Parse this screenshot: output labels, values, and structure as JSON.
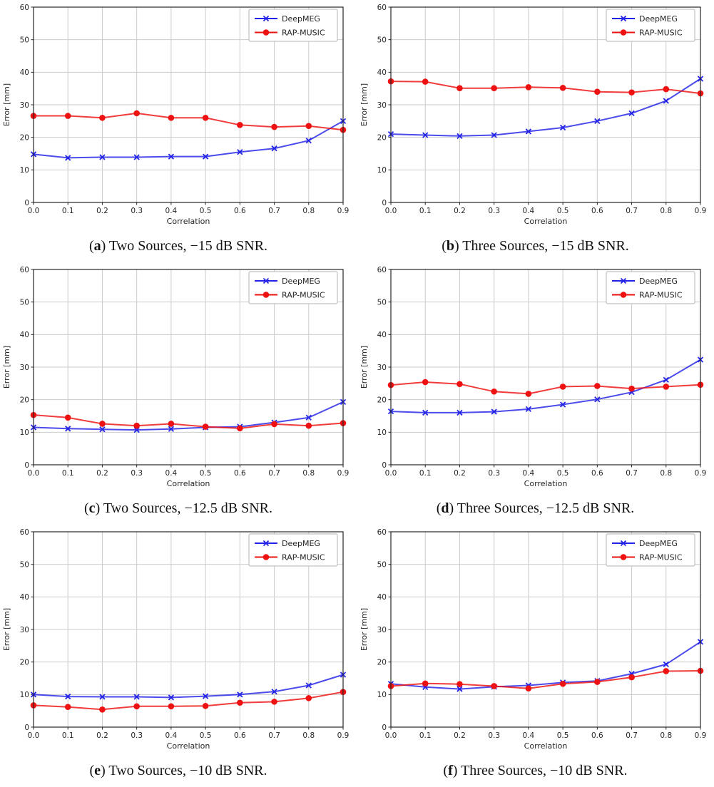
{
  "figure": {
    "xlabel": "Correlation",
    "ylabel": "Error [mm]",
    "legend_labels": [
      "DeepMEG",
      "RAP-MUSIC"
    ],
    "colors": {
      "deepmeg": "#2323e8",
      "rapmusic": "#ee1111",
      "grid": "#cccccc",
      "axis": "#262626",
      "legend_border": "#b3b3b3",
      "legend_bg": "#ffffff"
    }
  },
  "chart_data": [
    {
      "type": "line",
      "caption": {
        "open": "(",
        "letter": "a",
        "close": ")",
        "text": " Two Sources, −15 dB SNR."
      },
      "xlabel": "Correlation",
      "ylabel": "Error [mm]",
      "xlim": [
        0.0,
        0.9
      ],
      "ylim": [
        0,
        60
      ],
      "grid": true,
      "legend_position": "upper right",
      "x": [
        0.0,
        0.1,
        0.2,
        0.3,
        0.4,
        0.5,
        0.6,
        0.7,
        0.8,
        0.9
      ],
      "xticks": [
        "0.0",
        "0.1",
        "0.2",
        "0.3",
        "0.4",
        "0.5",
        "0.6",
        "0.7",
        "0.8",
        "0.9"
      ],
      "yticks": [
        0,
        10,
        20,
        30,
        40,
        50,
        60
      ],
      "series": [
        {
          "name": "DeepMEG",
          "color": "#2323e8",
          "marker": "x",
          "values": [
            14.8,
            13.7,
            13.9,
            13.9,
            14.1,
            14.1,
            15.5,
            16.6,
            19.0,
            25.0
          ]
        },
        {
          "name": "RAP-MUSIC",
          "color": "#ee1111",
          "marker": "circle",
          "values": [
            26.6,
            26.6,
            26.0,
            27.4,
            26.0,
            26.0,
            23.8,
            23.2,
            23.5,
            22.3
          ]
        }
      ]
    },
    {
      "type": "line",
      "caption": {
        "open": "(",
        "letter": "b",
        "close": ")",
        "text": " Three Sources, −15 dB SNR."
      },
      "xlabel": "Correlation",
      "ylabel": "Error [mm]",
      "xlim": [
        0.0,
        0.9
      ],
      "ylim": [
        0,
        60
      ],
      "grid": true,
      "legend_position": "upper right",
      "x": [
        0.0,
        0.1,
        0.2,
        0.3,
        0.4,
        0.5,
        0.6,
        0.7,
        0.8,
        0.9
      ],
      "xticks": [
        "0.0",
        "0.1",
        "0.2",
        "0.3",
        "0.4",
        "0.5",
        "0.6",
        "0.7",
        "0.8",
        "0.9"
      ],
      "yticks": [
        0,
        10,
        20,
        30,
        40,
        50,
        60
      ],
      "series": [
        {
          "name": "DeepMEG",
          "color": "#2323e8",
          "marker": "x",
          "values": [
            21.0,
            20.7,
            20.4,
            20.7,
            21.8,
            23.0,
            25.0,
            27.4,
            31.2,
            38.0
          ]
        },
        {
          "name": "RAP-MUSIC",
          "color": "#ee1111",
          "marker": "circle",
          "values": [
            37.2,
            37.1,
            35.1,
            35.1,
            35.4,
            35.2,
            34.0,
            33.8,
            34.8,
            33.5
          ]
        }
      ]
    },
    {
      "type": "line",
      "caption": {
        "open": "(",
        "letter": "c",
        "close": ")",
        "text": " Two Sources, −12.5 dB SNR."
      },
      "xlabel": "Correlation",
      "ylabel": "Error [mm]",
      "xlim": [
        0.0,
        0.9
      ],
      "ylim": [
        0,
        60
      ],
      "grid": true,
      "legend_position": "upper right",
      "x": [
        0.0,
        0.1,
        0.2,
        0.3,
        0.4,
        0.5,
        0.6,
        0.7,
        0.8,
        0.9
      ],
      "xticks": [
        "0.0",
        "0.1",
        "0.2",
        "0.3",
        "0.4",
        "0.5",
        "0.6",
        "0.7",
        "0.8",
        "0.9"
      ],
      "yticks": [
        0,
        10,
        20,
        30,
        40,
        50,
        60
      ],
      "series": [
        {
          "name": "DeepMEG",
          "color": "#2323e8",
          "marker": "x",
          "values": [
            11.5,
            11.1,
            10.9,
            10.7,
            11.0,
            11.5,
            11.7,
            13.0,
            14.5,
            19.3
          ]
        },
        {
          "name": "RAP-MUSIC",
          "color": "#ee1111",
          "marker": "circle",
          "values": [
            15.3,
            14.5,
            12.6,
            12.0,
            12.6,
            11.7,
            11.2,
            12.5,
            12.0,
            12.8
          ]
        }
      ]
    },
    {
      "type": "line",
      "caption": {
        "open": "(",
        "letter": "d",
        "close": ")",
        "text": " Three Sources, −12.5 dB SNR."
      },
      "xlabel": "Correlation",
      "ylabel": "Error [mm]",
      "xlim": [
        0.0,
        0.9
      ],
      "ylim": [
        0,
        60
      ],
      "grid": true,
      "legend_position": "upper right",
      "x": [
        0.0,
        0.1,
        0.2,
        0.3,
        0.4,
        0.5,
        0.6,
        0.7,
        0.8,
        0.9
      ],
      "xticks": [
        "0.0",
        "0.1",
        "0.2",
        "0.3",
        "0.4",
        "0.5",
        "0.6",
        "0.7",
        "0.8",
        "0.9"
      ],
      "yticks": [
        0,
        10,
        20,
        30,
        40,
        50,
        60
      ],
      "series": [
        {
          "name": "DeepMEG",
          "color": "#2323e8",
          "marker": "x",
          "values": [
            16.4,
            16.0,
            16.0,
            16.3,
            17.1,
            18.5,
            20.1,
            22.3,
            26.1,
            32.3
          ]
        },
        {
          "name": "RAP-MUSIC",
          "color": "#ee1111",
          "marker": "circle",
          "values": [
            24.5,
            25.4,
            24.8,
            22.5,
            21.8,
            24.0,
            24.2,
            23.4,
            24.0,
            24.6
          ]
        }
      ]
    },
    {
      "type": "line",
      "caption": {
        "open": "(",
        "letter": "e",
        "close": ")",
        "text": " Two Sources, −10 dB SNR."
      },
      "xlabel": "Correlation",
      "ylabel": "Error [mm]",
      "xlim": [
        0.0,
        0.9
      ],
      "ylim": [
        0,
        60
      ],
      "grid": true,
      "legend_position": "upper right",
      "x": [
        0.0,
        0.1,
        0.2,
        0.3,
        0.4,
        0.5,
        0.6,
        0.7,
        0.8,
        0.9
      ],
      "xticks": [
        "0.0",
        "0.1",
        "0.2",
        "0.3",
        "0.4",
        "0.5",
        "0.6",
        "0.7",
        "0.8",
        "0.9"
      ],
      "yticks": [
        0,
        10,
        20,
        30,
        40,
        50,
        60
      ],
      "series": [
        {
          "name": "DeepMEG",
          "color": "#2323e8",
          "marker": "x",
          "values": [
            10.0,
            9.4,
            9.3,
            9.3,
            9.1,
            9.5,
            10.0,
            10.9,
            12.8,
            16.1
          ]
        },
        {
          "name": "RAP-MUSIC",
          "color": "#ee1111",
          "marker": "circle",
          "values": [
            6.7,
            6.2,
            5.4,
            6.4,
            6.4,
            6.5,
            7.5,
            7.8,
            8.9,
            10.8
          ]
        }
      ]
    },
    {
      "type": "line",
      "caption": {
        "open": "(",
        "letter": "f",
        "close": ")",
        "text": " Three Sources, −10 dB SNR."
      },
      "xlabel": "Correlation",
      "ylabel": "Error [mm]",
      "xlim": [
        0.0,
        0.9
      ],
      "ylim": [
        0,
        60
      ],
      "grid": true,
      "legend_position": "upper right",
      "x": [
        0.0,
        0.1,
        0.2,
        0.3,
        0.4,
        0.5,
        0.6,
        0.7,
        0.8,
        0.9
      ],
      "xticks": [
        "0.0",
        "0.1",
        "0.2",
        "0.3",
        "0.4",
        "0.5",
        "0.6",
        "0.7",
        "0.8",
        "0.9"
      ],
      "yticks": [
        0,
        10,
        20,
        30,
        40,
        50,
        60
      ],
      "series": [
        {
          "name": "DeepMEG",
          "color": "#2323e8",
          "marker": "x",
          "values": [
            13.3,
            12.3,
            11.7,
            12.4,
            12.8,
            13.7,
            14.2,
            16.4,
            19.3,
            26.2
          ]
        },
        {
          "name": "RAP-MUSIC",
          "color": "#ee1111",
          "marker": "circle",
          "values": [
            12.6,
            13.4,
            13.2,
            12.6,
            11.9,
            13.3,
            13.9,
            15.3,
            17.2,
            17.3
          ]
        }
      ]
    }
  ]
}
